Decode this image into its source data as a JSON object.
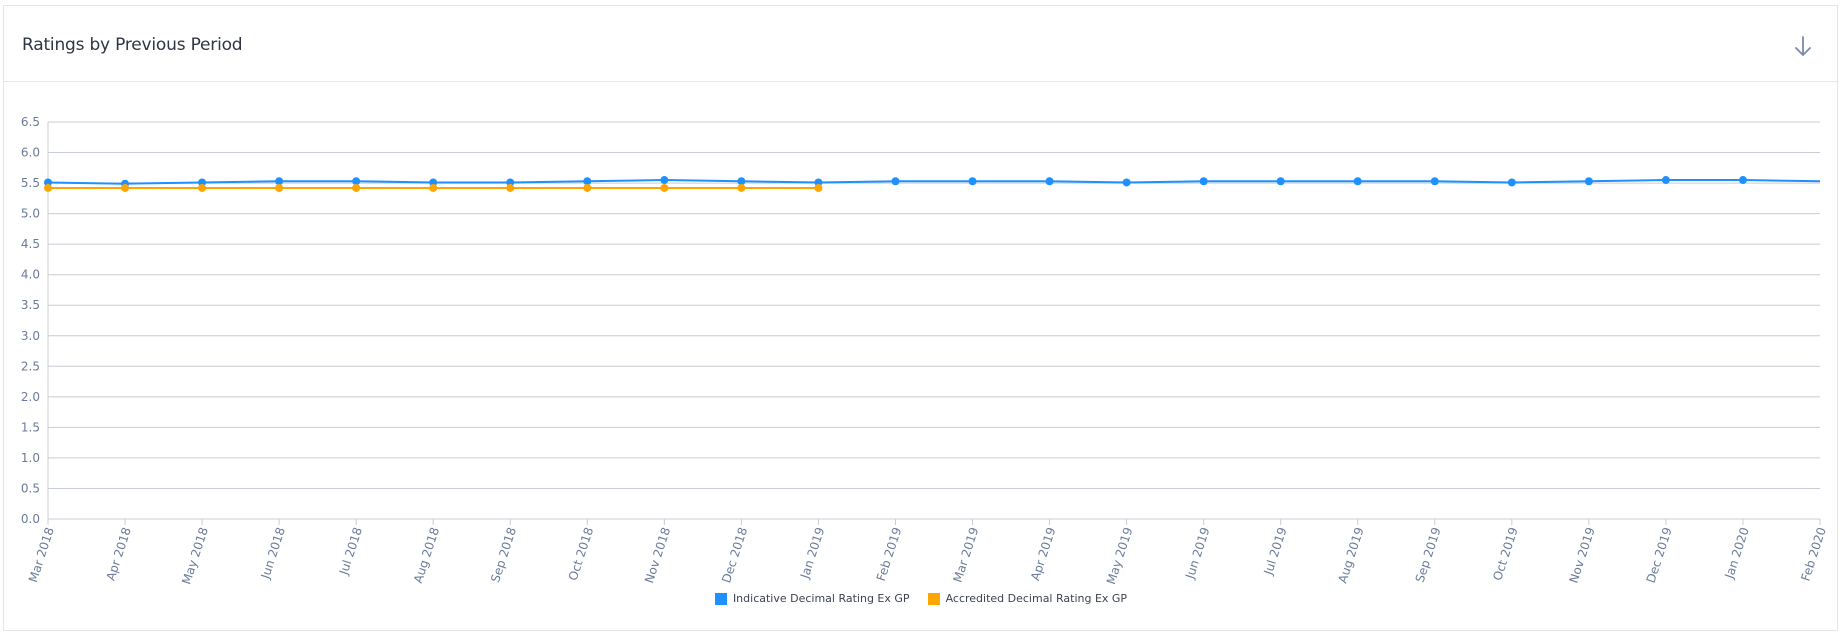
{
  "header": {
    "title": "Ratings by Previous Period"
  },
  "icons": {
    "download": "arrow-down-icon"
  },
  "colors": {
    "series1": "#1e90ff",
    "series2": "#ffa500",
    "grid": "#c8ccd4",
    "axis_text": "#6b7b99"
  },
  "chart_data": {
    "type": "line",
    "title": "Ratings by Previous Period",
    "xlabel": "",
    "ylabel": "",
    "ylim": [
      0,
      6.5
    ],
    "yticks": [
      "0.0",
      "0.5",
      "1.0",
      "1.5",
      "2.0",
      "2.5",
      "3.0",
      "3.5",
      "4.0",
      "4.5",
      "5.0",
      "5.5",
      "6.0",
      "6.5"
    ],
    "grid": true,
    "legend_position": "bottom",
    "categories": [
      "Mar 2018",
      "Apr 2018",
      "May 2018",
      "Jun 2018",
      "Jul 2018",
      "Aug 2018",
      "Sep 2018",
      "Oct 2018",
      "Nov 2018",
      "Dec 2018",
      "Jan 2019",
      "Feb 2019",
      "Mar 2019",
      "Apr 2019",
      "May 2019",
      "Jun 2019",
      "Jul 2019",
      "Aug 2019",
      "Sep 2019",
      "Oct 2019",
      "Nov 2019",
      "Dec 2019",
      "Jan 2020",
      "Feb 2020"
    ],
    "series": [
      {
        "name": "Indicative Decimal Rating Ex GP",
        "color": "#1e90ff",
        "values": [
          5.51,
          5.49,
          5.51,
          5.53,
          5.53,
          5.51,
          5.51,
          5.53,
          5.55,
          5.53,
          5.51,
          5.53,
          5.53,
          5.53,
          5.51,
          5.53,
          5.53,
          5.53,
          5.53,
          5.51,
          5.53,
          5.55,
          5.55,
          5.53
        ],
        "markers_last": false
      },
      {
        "name": "Accredited Decimal Rating Ex GP",
        "color": "#ffa500",
        "values": [
          5.42,
          5.42,
          5.42,
          5.42,
          5.42,
          5.42,
          5.42,
          5.42,
          5.42,
          5.42,
          5.42,
          null,
          null,
          null,
          null,
          null,
          null,
          null,
          null,
          null,
          null,
          null,
          null,
          null
        ],
        "markers_last": true
      }
    ]
  }
}
